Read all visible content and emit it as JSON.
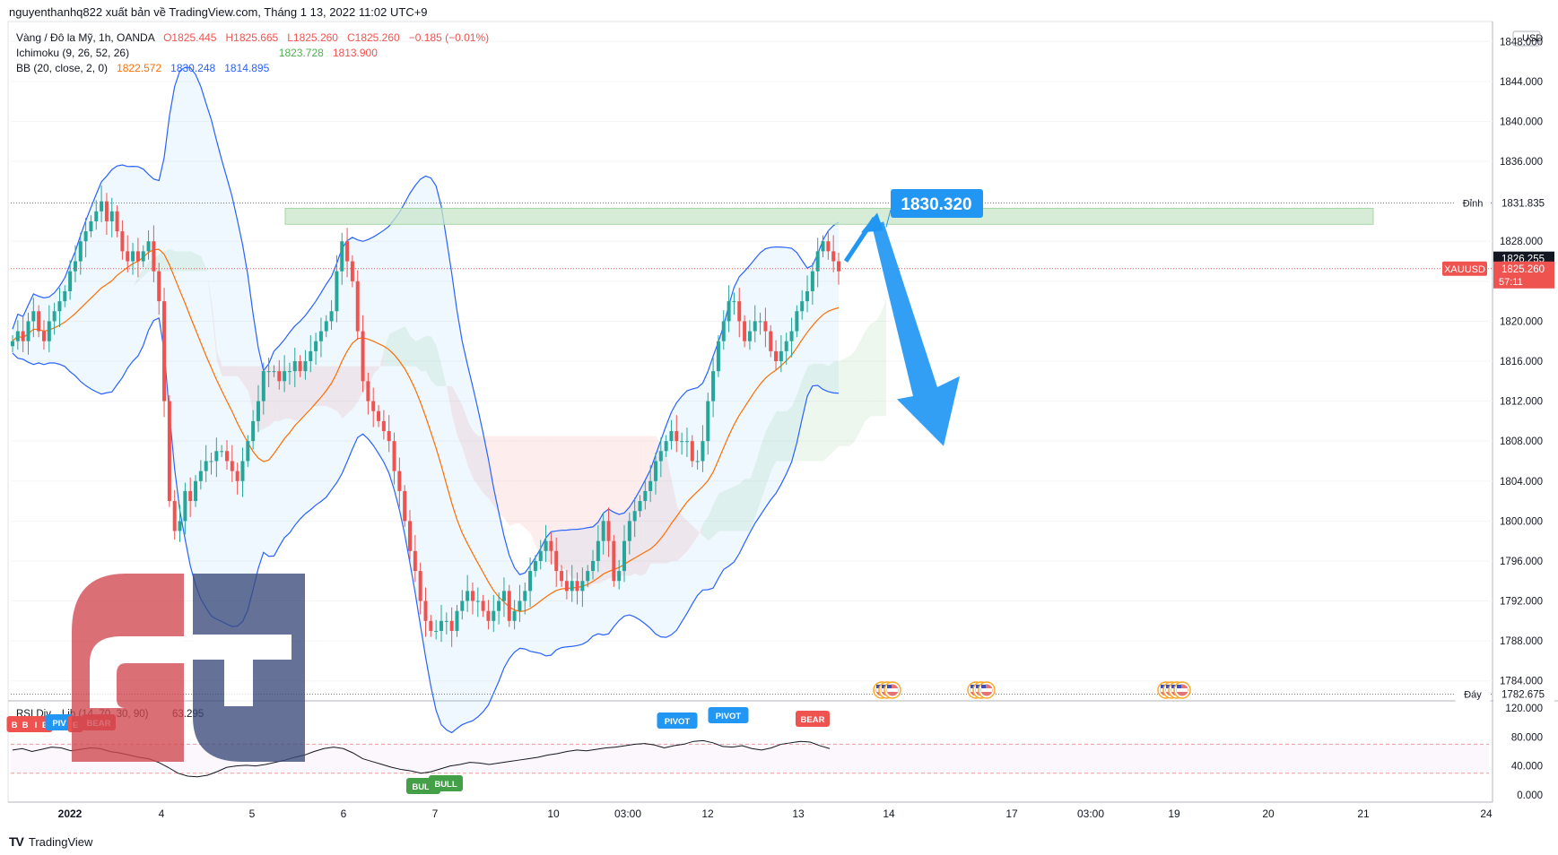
{
  "header": {
    "publisher_line": "nguyenthanhq822 xuất bản về TradingView.com, Tháng 1 13, 2022 11:02 UTC+9"
  },
  "legend": {
    "symbol": "Vàng / Đô la Mỹ, 1h, OANDA",
    "open": "O1825.445",
    "high": "H1825.665",
    "low": "L1825.260",
    "close": "C1825.260",
    "change": "−0.185 (−0.01%)",
    "ichimoku_label": "Ichimoku (9, 26, 52, 26)",
    "ichimoku_v1": "1823.728",
    "ichimoku_v2": "1813.900",
    "bb_label": "BB (20, close, 2, 0)",
    "bb_basis": "1822.572",
    "bb_upper": "1830.248",
    "bb_lower": "1814.895"
  },
  "colors": {
    "up": "#26a69a",
    "down": "#ef5350",
    "bb_line": "#2962ff",
    "bb_basis": "#ff6d00",
    "arrow": "#2196f3",
    "zone": "#c8e6c9",
    "rsi_line": "#131722"
  },
  "chart_data": [
    {
      "type": "candlestick",
      "symbol": "XAUUSD",
      "timeframe": "1h",
      "y_axis": {
        "currency": "USD",
        "ticks": [
          "1848.000",
          "1844.000",
          "1840.000",
          "1836.000",
          "1828.000",
          "1824.000",
          "1820.000",
          "1816.000",
          "1812.000",
          "1808.000",
          "1804.000",
          "1800.000",
          "1796.000",
          "1792.000",
          "1788.000",
          "1784.000"
        ],
        "ylim": [
          1782,
          1850
        ]
      },
      "x_axis": {
        "ticks": [
          "2022",
          "4",
          "5",
          "6",
          "7",
          "10",
          "03:00",
          "12",
          "13",
          "14",
          "17",
          "03:00",
          "19",
          "20",
          "21",
          "24"
        ]
      },
      "close_series": [
        1818,
        1819,
        1818,
        1820,
        1821,
        1819,
        1818,
        1820,
        1821,
        1822,
        1823,
        1825,
        1826,
        1828,
        1829,
        1830,
        1831,
        1832,
        1830,
        1831,
        1829,
        1827,
        1826,
        1827,
        1826,
        1827,
        1828,
        1825,
        1822,
        1812,
        1802,
        1799,
        1800,
        1803,
        1802,
        1804,
        1805,
        1806,
        1806,
        1807,
        1807,
        1806,
        1805,
        1804,
        1806,
        1808,
        1810,
        1812,
        1815,
        1815,
        1815,
        1814,
        1815,
        1815,
        1816,
        1815,
        1816,
        1817,
        1818,
        1819,
        1820,
        1821,
        1825,
        1828,
        1826,
        1824,
        1819,
        1814,
        1812,
        1811,
        1810,
        1809,
        1808,
        1805,
        1803,
        1800,
        1797,
        1795,
        1792,
        1790,
        1789,
        1789,
        1790,
        1790,
        1789,
        1791,
        1792,
        1793,
        1792,
        1792,
        1791,
        1790,
        1791,
        1792,
        1793,
        1790,
        1791,
        1792,
        1793,
        1795,
        1796,
        1797,
        1798,
        1797,
        1795,
        1794,
        1793,
        1794,
        1793,
        1794,
        1795,
        1796,
        1798,
        1800,
        1798,
        1794,
        1795,
        1798,
        1800,
        1801,
        1802,
        1803,
        1804,
        1806,
        1807,
        1808,
        1809,
        1808,
        1808,
        1808,
        1806,
        1806,
        1808,
        1812,
        1815,
        1818,
        1820,
        1822,
        1822,
        1820,
        1818,
        1819,
        1820,
        1820,
        1819,
        1817,
        1816,
        1817,
        1818,
        1819,
        1821,
        1822,
        1823,
        1825,
        1827,
        1828,
        1827,
        1826,
        1825
      ],
      "bollinger_bands": {
        "upper_end": 1830.248,
        "basis_end": 1822.572,
        "lower_end": 1814.895
      },
      "ichimoku": {
        "senkou_a_end": 1823.728,
        "senkou_b_end": 1813.9
      },
      "price_labels": {
        "top_level_label": "Đỉnh",
        "top_level_value": "1831.835",
        "top_level": 1831.835,
        "bottom_level_label": "Đáy",
        "bottom_level_value": "1782.675",
        "bottom_level": 1782.675,
        "prev_close_value": "1826.255",
        "prev_close": 1826.255,
        "symbol_tag": "XAUUSD",
        "last_price_value": "1825.260",
        "last_price": 1825.26,
        "countdown": "57:11"
      },
      "annotations": {
        "target_value": "1830.320",
        "target": 1830.32,
        "resistance_zone": [
          1829.7,
          1831.3
        ]
      }
    },
    {
      "type": "line",
      "title": "RSI Div... Lib (14, 70, 30, 90)",
      "last_value": "63.295",
      "y_axis": {
        "ticks": [
          "120.000",
          "80.000",
          "40.000",
          "0.000"
        ],
        "ylim": [
          -10,
          130
        ]
      },
      "levels": [
        70,
        30
      ],
      "signal_labels": [
        "BULL",
        "BULL",
        "PIVOT",
        "PIVOT",
        "BEAR",
        "B",
        "B",
        "I",
        "E",
        "PIV",
        "E",
        "BEAR"
      ],
      "values": [
        62,
        64,
        60,
        63,
        66,
        65,
        61,
        63,
        65,
        64,
        60,
        58,
        55,
        52,
        50,
        45,
        38,
        30,
        26,
        25,
        27,
        32,
        38,
        40,
        41,
        40,
        42,
        45,
        48,
        52,
        55,
        60,
        64,
        66,
        64,
        58,
        50,
        46,
        42,
        38,
        35,
        33,
        30,
        32,
        36,
        40,
        42,
        45,
        44,
        42,
        44,
        46,
        48,
        50,
        52,
        55,
        57,
        60,
        62,
        61,
        63,
        65,
        66,
        68,
        70,
        71,
        69,
        65,
        68,
        70,
        74,
        75,
        72,
        67,
        66,
        68,
        64,
        62,
        65,
        70,
        72,
        74,
        73,
        68,
        64
      ]
    }
  ]
}
